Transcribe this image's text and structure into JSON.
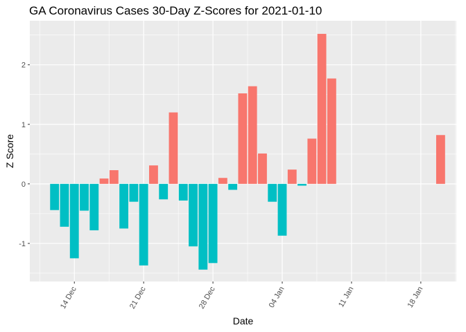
{
  "chart_data": {
    "type": "bar",
    "title": "GA Coronavirus Cases 30-Day Z-Scores for 2021-01-10",
    "xlabel": "Date",
    "ylabel": "Z Score",
    "ylim": [
      -1.64,
      2.74
    ],
    "xlim": [
      "2020-12-09T12:00",
      "2021-01-21T14:00"
    ],
    "y_ticks": [
      -1,
      0,
      1,
      2
    ],
    "x_ticks": [
      {
        "date": "2020-12-14",
        "label": "14 Dec"
      },
      {
        "date": "2020-12-21",
        "label": "21 Dec"
      },
      {
        "date": "2020-12-28",
        "label": "28 Dec"
      },
      {
        "date": "2021-01-04",
        "label": "04 Jan"
      },
      {
        "date": "2021-01-11",
        "label": "11 Jan"
      },
      {
        "date": "2021-01-18",
        "label": "18 Jan"
      }
    ],
    "grid": true,
    "legend": "none",
    "colors": {
      "positive": "#F8766D",
      "negative": "#00BFC4",
      "panel": "#EBEBEB",
      "grid": "#FFFFFF"
    },
    "x": [
      "2020-12-12",
      "2020-12-13",
      "2020-12-14",
      "2020-12-15",
      "2020-12-16",
      "2020-12-17",
      "2020-12-18",
      "2020-12-19",
      "2020-12-20",
      "2020-12-21",
      "2020-12-22",
      "2020-12-23",
      "2020-12-24",
      "2020-12-25",
      "2020-12-26",
      "2020-12-27",
      "2020-12-28",
      "2020-12-29",
      "2020-12-30",
      "2020-12-31",
      "2021-01-01",
      "2021-01-02",
      "2021-01-03",
      "2021-01-04",
      "2021-01-05",
      "2021-01-06",
      "2021-01-07",
      "2021-01-08",
      "2021-01-09",
      "2021-01-20"
    ],
    "values": [
      -0.44,
      -0.72,
      -1.25,
      -0.45,
      -0.78,
      0.09,
      0.23,
      -0.75,
      -0.3,
      -1.37,
      0.31,
      -0.26,
      1.2,
      -0.28,
      -1.05,
      -1.44,
      -1.33,
      0.1,
      -0.1,
      1.52,
      1.64,
      0.51,
      -0.3,
      -0.87,
      0.24,
      -0.03,
      0.76,
      2.52,
      1.77,
      0.82
    ]
  }
}
